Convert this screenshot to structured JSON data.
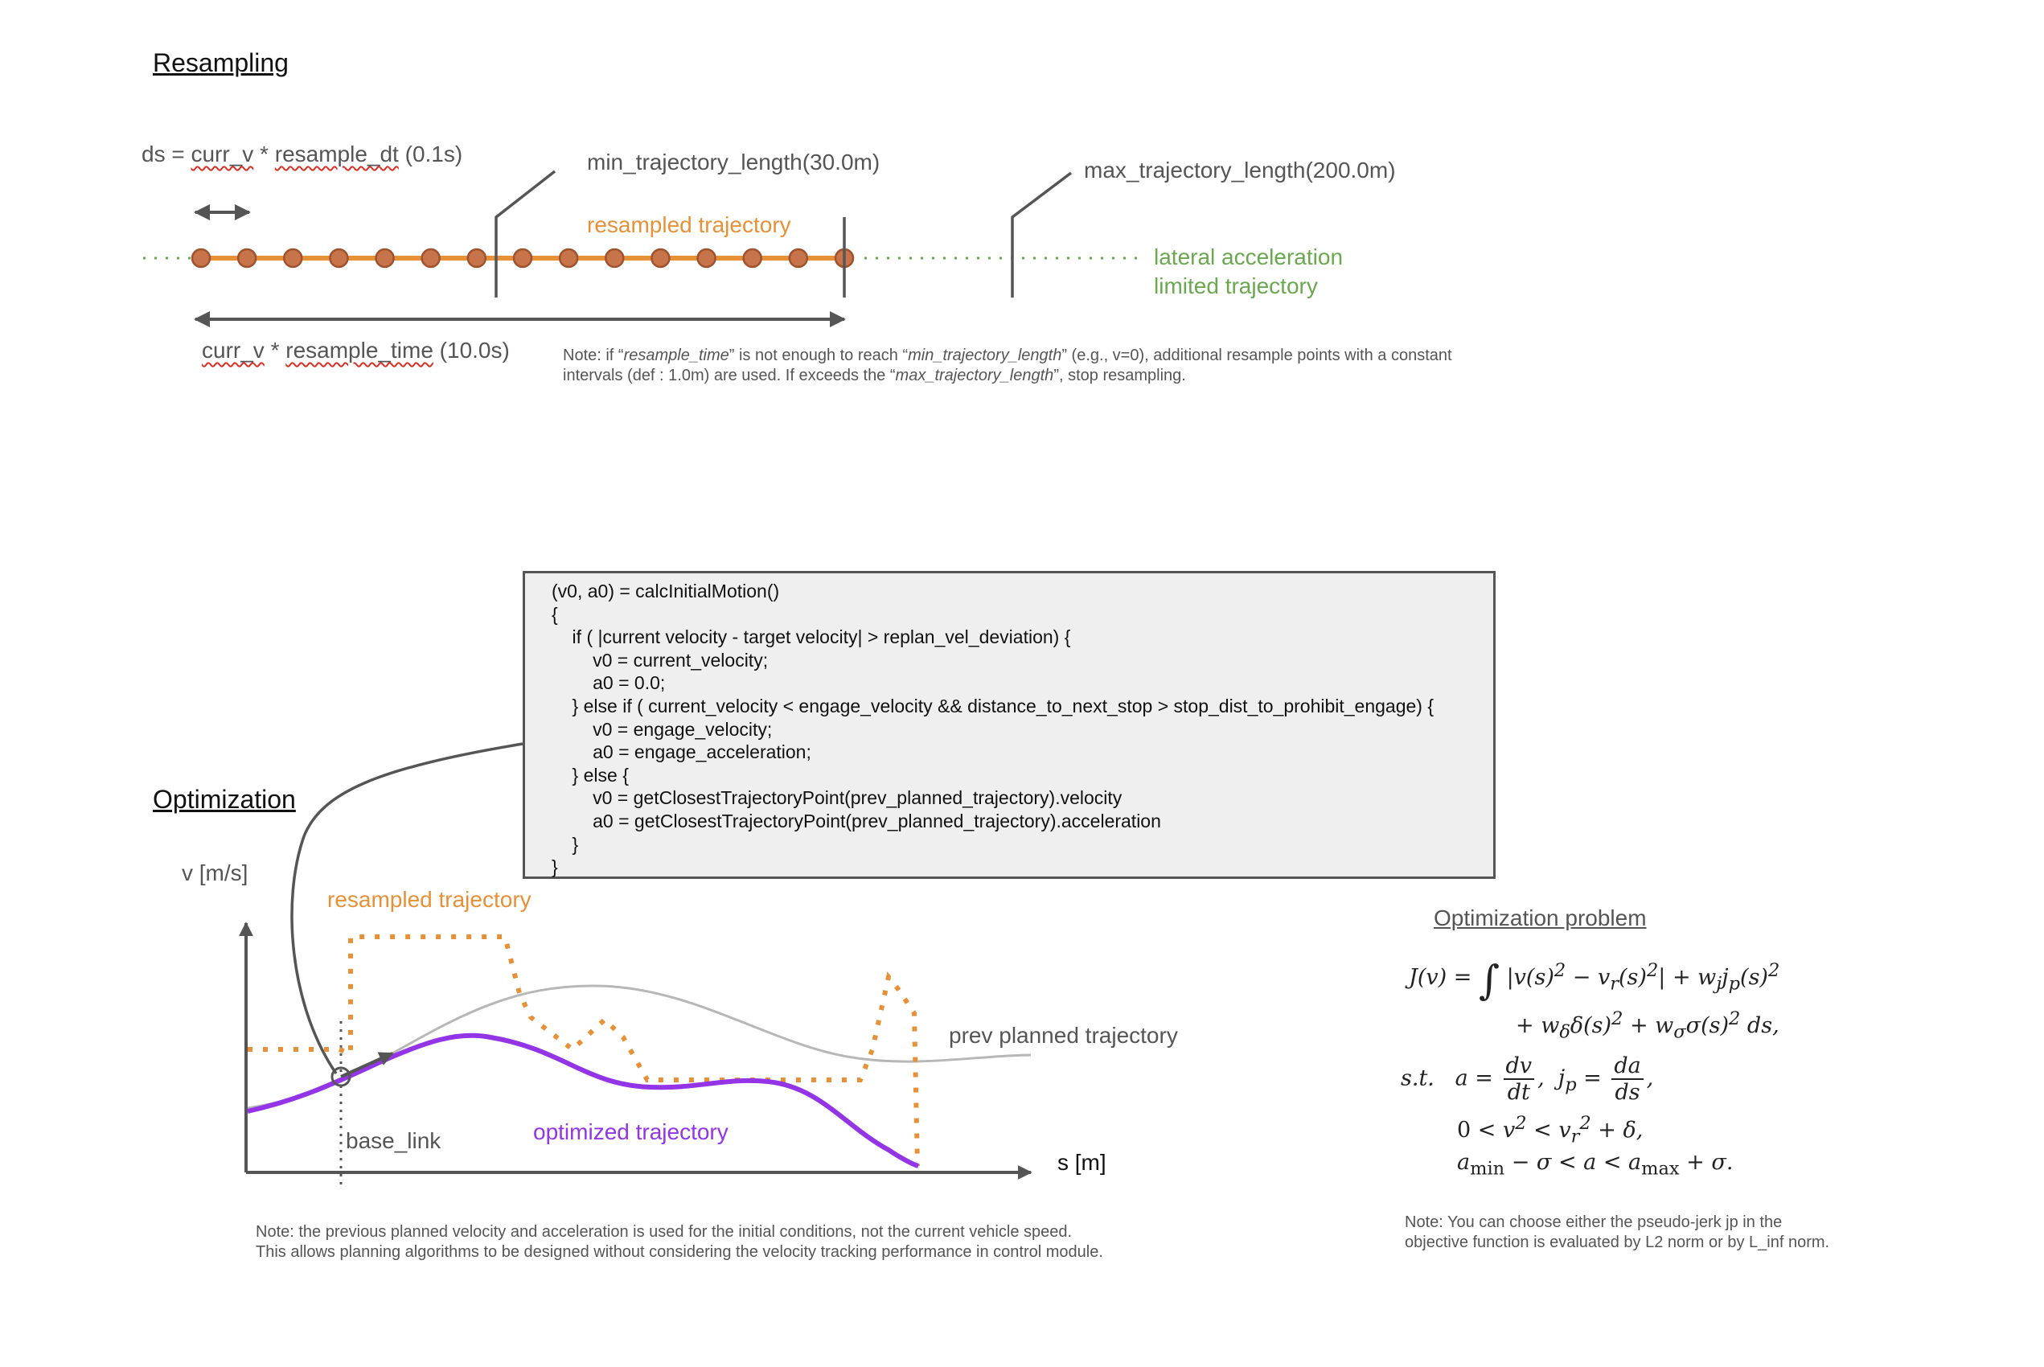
{
  "resampling": {
    "heading": "Resampling",
    "ds_label": {
      "prefix": "ds = ",
      "var1": "curr_v",
      "middle": " * ",
      "var2": "resample_dt",
      "suffix": " (0.1s)"
    },
    "min_label": "min_trajectory_length(30.0m)",
    "max_label": "max_trajectory_length(200.0m)",
    "resampled_label": "resampled trajectory",
    "lateral_label": [
      "lateral acceleration",
      "limited trajectory"
    ],
    "time_label": {
      "var1": "curr_v",
      "middle": " * ",
      "var2": "resample_time",
      "suffix": " (10.0s)"
    },
    "note": {
      "t1": "Note: if “",
      "i1": "resample_time",
      "t2": "” is not enough to reach “",
      "i2": "min_trajectory_length",
      "t3": "” (e.g., v=0), additional resample points with a constant intervals (def : 1.0m) are used. If exceeds the “",
      "i3": "max_trajectory_length",
      "t4": "”, stop resampling."
    },
    "point_count": 15
  },
  "optimization": {
    "heading": "Optimization",
    "y_axis": "v [m/s]",
    "x_axis": "s [m]",
    "resampled_label": "resampled trajectory",
    "prev_label": "prev planned trajectory",
    "optimized_label": "optimized trajectory",
    "base_link_label": "base_link",
    "note_lines": [
      "Note: the previous planned velocity and acceleration is used for the initial conditions, not the current vehicle speed.",
      "This allows planning algorithms to be designed without considering the velocity tracking performance in control module."
    ]
  },
  "code_lines": [
    "(v0, a0) = calcInitialMotion()",
    "{",
    "    if ( |current velocity - target velocity| > replan_vel_deviation) {",
    "        v0 = current_velocity;",
    "        a0 = 0.0;",
    "    } else if ( current_velocity < engage_velocity && distance_to_next_stop > stop_dist_to_prohibit_engage) {",
    "        v0 = engage_velocity;",
    "        a0 = engage_acceleration;",
    "    } else {",
    "        v0 = getClosestTrajectoryPoint(prev_planned_trajectory).velocity",
    "        a0 = getClosestTrajectoryPoint(prev_planned_trajectory).acceleration",
    "    }",
    "}"
  ],
  "optimization_problem": {
    "title": "Optimization problem",
    "note_lines": [
      "Note: You can choose either the pseudo-jerk jp in the",
      "objective function is evaluated by L2 norm or by L_inf norm."
    ]
  },
  "colors": {
    "orange": "#e69138",
    "green": "#6aa84f",
    "purple": "#9334e6",
    "gray_line": "#b7b7b7",
    "dark": "#555555",
    "point_fill": "#c8744b"
  }
}
